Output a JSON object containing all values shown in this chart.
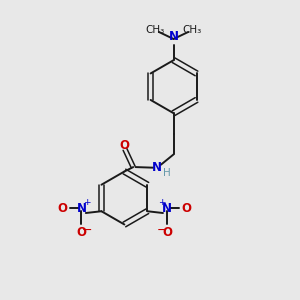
{
  "background_color": "#e8e8e8",
  "bond_color": "#1a1a1a",
  "nitrogen_color": "#0000cc",
  "oxygen_color": "#cc0000",
  "nh_color": "#0000cc",
  "fig_width": 3.0,
  "fig_height": 3.0,
  "dpi": 100,
  "xlim": [
    0,
    10
  ],
  "ylim": [
    0,
    10
  ]
}
